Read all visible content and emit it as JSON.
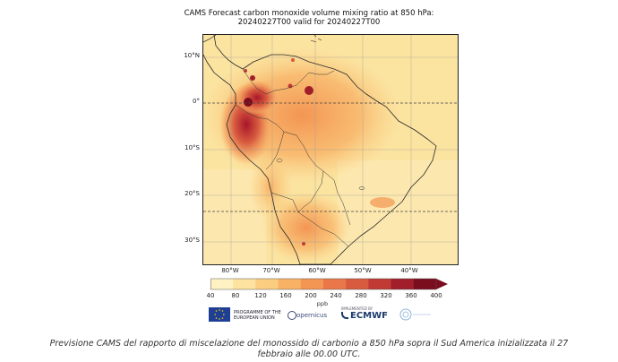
{
  "title_line1": "CAMS Forecast carbon monoxide volume mixing ratio at 850 hPa:",
  "title_line2": "20240227T00 valid for 20240227T00",
  "map": {
    "lat_labels": [
      "10°N",
      "0°",
      "10°S",
      "20°S",
      "30°S"
    ],
    "lon_labels": [
      "80°W",
      "70°W",
      "60°W",
      "50°W",
      "40°W"
    ],
    "background_color": "#fbe6a6"
  },
  "colorbar": {
    "ticks": [
      "40",
      "80",
      "120",
      "160",
      "200",
      "240",
      "280",
      "320",
      "360",
      "400"
    ],
    "unit": "ppb",
    "colors": [
      "#fff3c4",
      "#fde2a0",
      "#fbcd80",
      "#f8b266",
      "#f39553",
      "#e9774a",
      "#d85a3f",
      "#c13a33",
      "#a01f2a",
      "#7a0d1e"
    ]
  },
  "logos": {
    "eu": "PROGRAMME OF THE EUROPEAN UNION",
    "copernicus": "opernicus",
    "ecmwf_small": "IMPLEMENTED BY",
    "ecmwf": "ECMWF"
  },
  "caption": "Previsione CAMS del rapporto di miscelazione del monossido di carbonio a 850 hPa sopra il Sud America inizializzata il 27 febbraio alle 00.00 UTC."
}
